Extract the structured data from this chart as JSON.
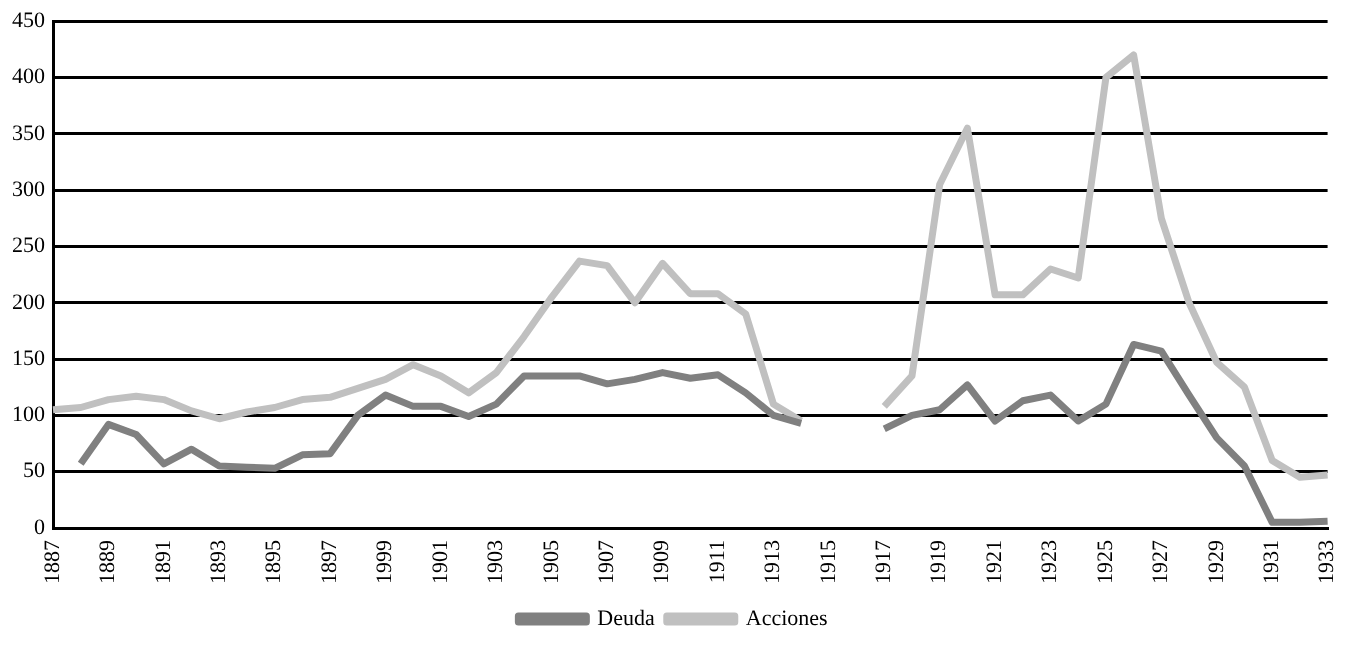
{
  "chart_data": {
    "type": "line",
    "categories": [
      "1887",
      null,
      "1889",
      null,
      "1891",
      null,
      "1893",
      null,
      "1895",
      null,
      "1897",
      null,
      "1999",
      null,
      "1901",
      null,
      "1903",
      null,
      "1905",
      null,
      "1907",
      null,
      "1909",
      null,
      "1911",
      null,
      "1913",
      null,
      "1915",
      null,
      "1917",
      null,
      "1919",
      null,
      "1921",
      null,
      "1923",
      null,
      "1925",
      null,
      "1927",
      null,
      "1929",
      null,
      "1931",
      null,
      "1933"
    ],
    "series": [
      {
        "name": "Deuda",
        "color": "#808080",
        "values": [
          null,
          57,
          92,
          83,
          57,
          70,
          55,
          54,
          53,
          65,
          66,
          100,
          118,
          108,
          108,
          99,
          110,
          135,
          135,
          135,
          128,
          132,
          138,
          133,
          136,
          120,
          100,
          93,
          null,
          null,
          88,
          100,
          105,
          127,
          95,
          113,
          118,
          95,
          110,
          163,
          157,
          118,
          80,
          55,
          5,
          5,
          6
        ]
      },
      {
        "name": "Acciones",
        "color": "#c0c0c0",
        "values": [
          105,
          107,
          114,
          117,
          114,
          104,
          97,
          103,
          107,
          114,
          116,
          124,
          132,
          145,
          135,
          120,
          138,
          170,
          205,
          237,
          233,
          200,
          235,
          208,
          208,
          190,
          110,
          95,
          null,
          null,
          108,
          135,
          305,
          355,
          207,
          207,
          230,
          222,
          400,
          420,
          275,
          200,
          147,
          125,
          60,
          45,
          47
        ]
      }
    ],
    "ylim": [
      0,
      450
    ],
    "yticks": [
      0,
      50,
      100,
      150,
      200,
      250,
      300,
      350,
      400,
      450
    ],
    "grid": "y",
    "legend": "bottom",
    "marker": "none",
    "line_style": "solid"
  }
}
